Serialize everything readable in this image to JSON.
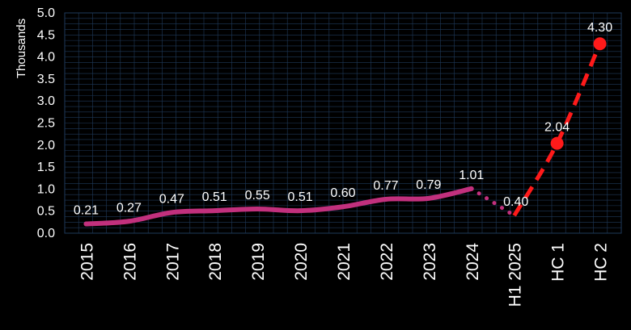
{
  "chart_data": {
    "type": "line",
    "ylabel": "Thousands",
    "ylim": [
      0,
      5
    ],
    "yticks": [
      "0.0",
      "0.5",
      "1.0",
      "1.5",
      "2.0",
      "2.5",
      "3.0",
      "3.5",
      "4.0",
      "4.5",
      "5.0"
    ],
    "categories": [
      "2015",
      "2016",
      "2017",
      "2018",
      "2019",
      "2020",
      "2021",
      "2022",
      "2023",
      "2024",
      "H1 2025",
      "HC 1",
      "HC 2"
    ],
    "series": [
      {
        "style": "solid",
        "color": "#c2307d",
        "x": [
          "2015",
          "2016",
          "2017",
          "2018",
          "2019",
          "2020",
          "2021",
          "2022",
          "2023",
          "2024"
        ],
        "values": [
          0.21,
          0.27,
          0.47,
          0.51,
          0.55,
          0.51,
          0.6,
          0.77,
          0.79,
          1.01
        ],
        "labels": [
          "0.21",
          "0.27",
          "0.47",
          "0.51",
          "0.55",
          "0.51",
          "0.60",
          "0.77",
          "0.79",
          "1.01"
        ]
      },
      {
        "style": "dotted",
        "color": "#c2307d",
        "x": [
          "2024",
          "H1 2025"
        ],
        "values": [
          1.01,
          0.4
        ],
        "labels": [
          "",
          "0.40"
        ]
      },
      {
        "style": "dashed",
        "color": "#ff1a1a",
        "x": [
          "H1 2025",
          "HC 1",
          "HC 2"
        ],
        "values": [
          0.4,
          2.04,
          4.3
        ],
        "labels": [
          "",
          "2.04",
          "4.30"
        ]
      }
    ],
    "grid": true,
    "legend": "none",
    "colors": {
      "background": "#000000",
      "grid": "#1f3a5a",
      "text": "#ffffff"
    }
  }
}
